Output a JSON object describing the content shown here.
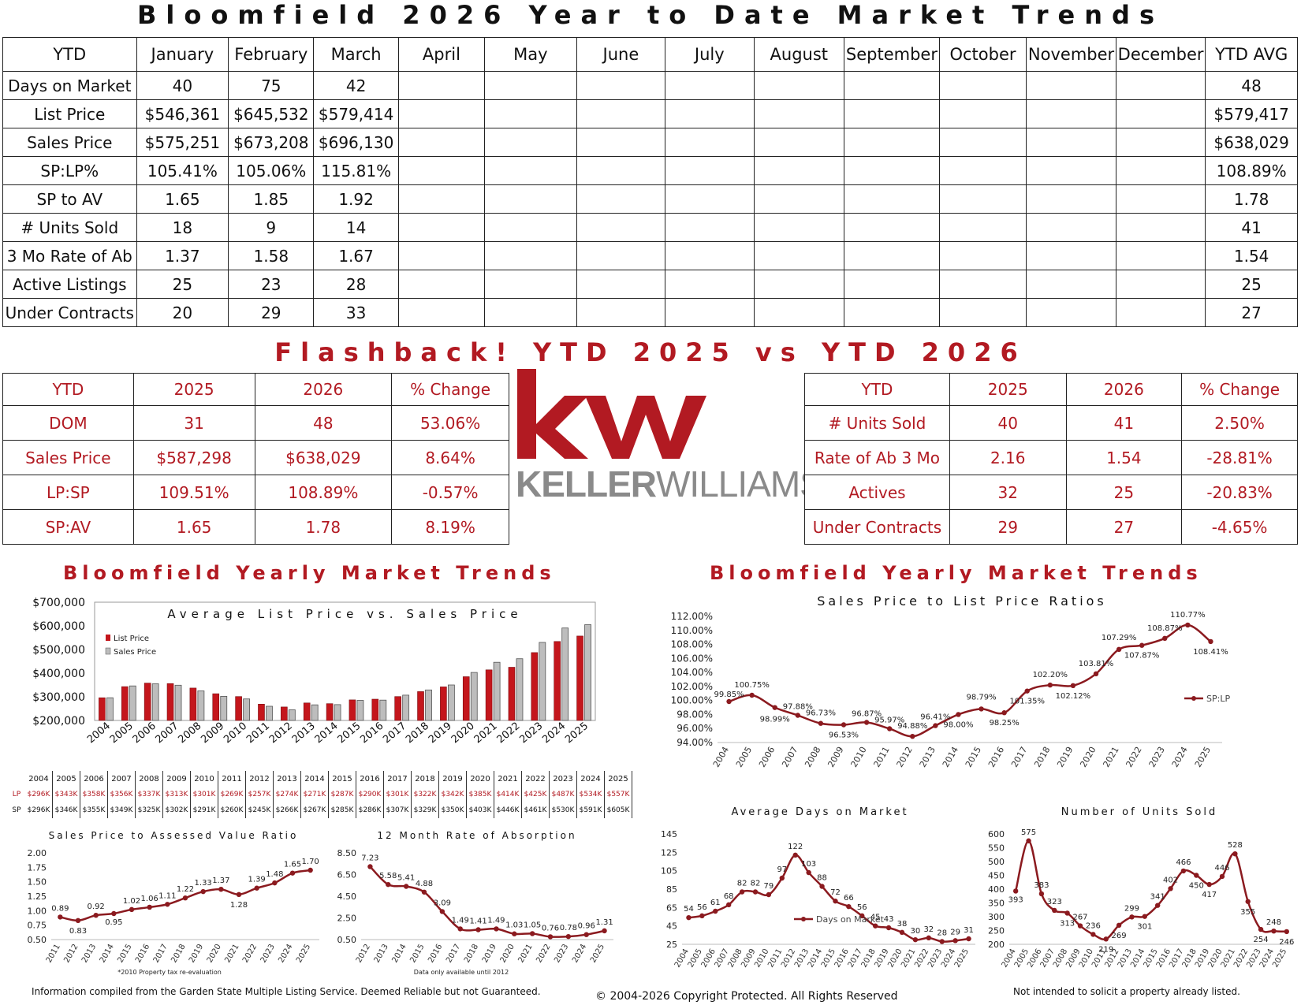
{
  "header": {
    "title": "Bloomfield 2026 Year to Date Market Trends"
  },
  "ytd_table": {
    "columns": [
      "YTD",
      "January",
      "February",
      "March",
      "April",
      "May",
      "June",
      "July",
      "August",
      "September",
      "October",
      "November",
      "December",
      "YTD AVG"
    ],
    "rows": [
      {
        "label": "Days on Market",
        "jan": "40",
        "feb": "75",
        "mar": "42",
        "avg": "48"
      },
      {
        "label": "List Price",
        "jan": "$546,361",
        "feb": "$645,532",
        "mar": "$579,414",
        "avg": "$579,417"
      },
      {
        "label": "Sales Price",
        "jan": "$575,251",
        "feb": "$673,208",
        "mar": "$696,130",
        "avg": "$638,029"
      },
      {
        "label": "SP:LP%",
        "jan": "105.41%",
        "feb": "105.06%",
        "mar": "115.81%",
        "avg": "108.89%"
      },
      {
        "label": "SP to AV",
        "jan": "1.65",
        "feb": "1.85",
        "mar": "1.92",
        "avg": "1.78"
      },
      {
        "label": "# Units Sold",
        "jan": "18",
        "feb": "9",
        "mar": "14",
        "avg": "41"
      },
      {
        "label": "3 Mo Rate of Ab",
        "jan": "1.37",
        "feb": "1.58",
        "mar": "1.67",
        "avg": "1.54"
      },
      {
        "label": "Active Listings",
        "jan": "25",
        "feb": "23",
        "mar": "28",
        "avg": "25"
      },
      {
        "label": "Under Contracts",
        "jan": "20",
        "feb": "29",
        "mar": "33",
        "avg": "27"
      }
    ]
  },
  "flashback": {
    "title": "Flashback!  YTD 2025 vs YTD 2026",
    "left": {
      "headers": [
        "YTD",
        "2025",
        "2026",
        "% Change"
      ],
      "rows": [
        [
          "DOM",
          "31",
          "48",
          "53.06%"
        ],
        [
          "Sales Price",
          "$587,298",
          "$638,029",
          "8.64%"
        ],
        [
          "LP:SP",
          "109.51%",
          "108.89%",
          "-0.57%"
        ],
        [
          "SP:AV",
          "1.65",
          "1.78",
          "8.19%"
        ]
      ]
    },
    "right": {
      "headers": [
        "YTD",
        "2025",
        "2026",
        "% Change"
      ],
      "rows": [
        [
          "# Units Sold",
          "40",
          "41",
          "2.50%"
        ],
        [
          "Rate of Ab 3 Mo",
          "2.16",
          "1.54",
          "-28.81%"
        ],
        [
          "Actives",
          "32",
          "25",
          "-20.83%"
        ],
        [
          "Under Contracts",
          "29",
          "27",
          "-4.65%"
        ]
      ]
    }
  },
  "logo": {
    "letters": "kw",
    "wordmark_bold": "KELLER",
    "wordmark_light": "WILLIAMS",
    "registered": "®",
    "color": "#b21a22"
  },
  "sections": {
    "left_title": "Bloomfield Yearly Market Trends",
    "right_title": "Bloomfield Yearly Market Trends"
  },
  "colors": {
    "brand_red": "#b21a22",
    "line_red": "#8b1a1f",
    "gray_bar": "#bdbdbd"
  },
  "years_full": [
    "2004",
    "2005",
    "2006",
    "2007",
    "2008",
    "2009",
    "2010",
    "2011",
    "2012",
    "2013",
    "2014",
    "2015",
    "2016",
    "2017",
    "2018",
    "2019",
    "2020",
    "2021",
    "2022",
    "2023",
    "2024",
    "2025"
  ],
  "years_short": [
    "2011",
    "2012",
    "2013",
    "2014",
    "2015",
    "2016",
    "2017",
    "2018",
    "2019",
    "2020",
    "2021",
    "2022",
    "2023",
    "2024",
    "2025"
  ],
  "price_table": {
    "lp_label": "LP",
    "sp_label": "SP",
    "lp": [
      "$296K",
      "$343K",
      "$358K",
      "$356K",
      "$337K",
      "$313K",
      "$301K",
      "$269K",
      "$257K",
      "$274K",
      "$271K",
      "$287K",
      "$290K",
      "$301K",
      "$322K",
      "$342K",
      "$385K",
      "$414K",
      "$425K",
      "$487K",
      "$534K",
      "$557K"
    ],
    "sp": [
      "$296K",
      "$346K",
      "$355K",
      "$349K",
      "$325K",
      "$302K",
      "$291K",
      "$260K",
      "$245K",
      "$266K",
      "$267K",
      "$285K",
      "$286K",
      "$307K",
      "$329K",
      "$350K",
      "$403K",
      "$446K",
      "$461K",
      "$530K",
      "$591K",
      "$605K"
    ]
  },
  "chart_data": [
    {
      "type": "bar",
      "title": "Average List Price vs. Sales Price",
      "categories": [
        "2004",
        "2005",
        "2006",
        "2007",
        "2008",
        "2009",
        "2010",
        "2011",
        "2012",
        "2013",
        "2014",
        "2015",
        "2016",
        "2017",
        "2018",
        "2019",
        "2020",
        "2021",
        "2022",
        "2023",
        "2024",
        "2025"
      ],
      "series": [
        {
          "name": "List Price",
          "values": [
            296,
            343,
            358,
            356,
            337,
            313,
            301,
            269,
            257,
            274,
            271,
            287,
            290,
            301,
            322,
            342,
            385,
            414,
            425,
            487,
            534,
            557
          ]
        },
        {
          "name": "Sales Price",
          "values": [
            296,
            346,
            355,
            349,
            325,
            302,
            291,
            260,
            245,
            266,
            267,
            285,
            286,
            307,
            329,
            350,
            403,
            446,
            461,
            530,
            591,
            605
          ]
        }
      ],
      "y_ticks": [
        "$200,000",
        "$300,000",
        "$400,000",
        "$500,000",
        "$600,000",
        "$700,000"
      ],
      "ylim": [
        200,
        700
      ],
      "legend": "top-left"
    },
    {
      "type": "line",
      "title": "Sales Price to List Price Ratios",
      "categories": [
        "2004",
        "2005",
        "2006",
        "2007",
        "2008",
        "2009",
        "2010",
        "2011",
        "2012",
        "2013",
        "2014",
        "2015",
        "2016",
        "2017",
        "2018",
        "2019",
        "2020",
        "2021",
        "2022",
        "2023",
        "2024",
        "2025"
      ],
      "series": [
        {
          "name": "SP:LP",
          "values": [
            99.85,
            100.75,
            98.99,
            97.88,
            96.73,
            96.53,
            96.87,
            95.97,
            94.88,
            96.41,
            98.0,
            98.79,
            98.25,
            101.35,
            102.2,
            102.12,
            103.81,
            107.29,
            107.87,
            108.87,
            110.77,
            108.41
          ]
        }
      ],
      "labels": [
        "99.85%",
        "100.75%",
        "98.99%",
        "97.88%",
        "96.73%",
        "96.53%",
        "96.87%",
        "95.97%",
        "94.88%",
        "96.41%",
        "98.00%",
        "98.79%",
        "98.25%",
        "101.35%",
        "102.20%",
        "102.12%",
        "103.81%",
        "107.29%",
        "107.87%",
        "108.87%",
        "110.77%",
        "108.41%"
      ],
      "y_ticks": [
        "94.00%",
        "96.00%",
        "98.00%",
        "100.00%",
        "102.00%",
        "104.00%",
        "106.00%",
        "108.00%",
        "110.00%",
        "112.00%"
      ],
      "ylim": [
        94,
        112
      ],
      "legend": "right"
    },
    {
      "type": "line",
      "title": "Sales Price to Assessed Value Ratio",
      "categories": [
        "2011",
        "2012",
        "2013",
        "2014",
        "2015",
        "2016",
        "2017",
        "2018",
        "2019",
        "2020",
        "2021",
        "2022",
        "2023",
        "2024",
        "2025"
      ],
      "series": [
        {
          "name": "",
          "values": [
            0.89,
            0.83,
            0.92,
            0.95,
            1.02,
            1.06,
            1.11,
            1.22,
            1.33,
            1.37,
            1.28,
            1.39,
            1.48,
            1.65,
            1.7
          ]
        }
      ],
      "labels": [
        "0.89",
        "0.83",
        "0.92",
        "0.95",
        "1.02",
        "1.06",
        "1.11",
        "1.22",
        "1.33",
        "1.37",
        "1.28",
        "1.39",
        "1.48",
        "1.65",
        "1.70"
      ],
      "y_ticks": [
        "0.50",
        "0.75",
        "1.00",
        "1.25",
        "1.50",
        "1.75",
        "2.00"
      ],
      "ylim": [
        0.5,
        2.0
      ],
      "footnote": "*2010 Property tax re-evaluation"
    },
    {
      "type": "line",
      "title": "12 Month Rate of Absorption",
      "categories": [
        "2012",
        "2013",
        "2014",
        "2015",
        "2016",
        "2017",
        "2018",
        "2019",
        "2020",
        "2021",
        "2022",
        "2023",
        "2024",
        "2025"
      ],
      "series": [
        {
          "name": "",
          "values": [
            7.23,
            5.58,
            5.41,
            4.88,
            3.09,
            1.49,
            1.41,
            1.49,
            1.03,
            1.05,
            0.76,
            0.78,
            0.96,
            1.31
          ]
        }
      ],
      "labels": [
        "7.23",
        "5.58",
        "5.41",
        "4.88",
        "3.09",
        "1.49",
        "1.41",
        "1.49",
        "1.03",
        "1.05",
        "0.76",
        "0.78",
        "0.96",
        "1.31"
      ],
      "y_ticks": [
        "0.50",
        "2.50",
        "4.50",
        "6.50",
        "8.50"
      ],
      "ylim": [
        0.5,
        8.5
      ],
      "footnote": "Data only available until 2012"
    },
    {
      "type": "line",
      "title": "Average Days on Market",
      "categories": [
        "2004",
        "2005",
        "2006",
        "2007",
        "2008",
        "2009",
        "2010",
        "2011",
        "2012",
        "2013",
        "2014",
        "2015",
        "2016",
        "2017",
        "2018",
        "2019",
        "2020",
        "2021",
        "2022",
        "2023",
        "2024",
        "2025"
      ],
      "series": [
        {
          "name": "Days on Market",
          "values": [
            54,
            56,
            61,
            68,
            82,
            82,
            79,
            97,
            122,
            103,
            88,
            72,
            66,
            56,
            45,
            43,
            38,
            30,
            32,
            28,
            29,
            31
          ]
        }
      ],
      "labels": [
        "54",
        "56",
        "61",
        "68",
        "82",
        "82",
        "79",
        "97",
        "122",
        "103",
        "88",
        "72",
        "66",
        "56",
        "45",
        "43",
        "38",
        "30",
        "32",
        "28",
        "29",
        "31"
      ],
      "y_ticks": [
        "25",
        "45",
        "65",
        "85",
        "105",
        "125",
        "145"
      ],
      "ylim": [
        25,
        145
      ],
      "legend": "bottom-right"
    },
    {
      "type": "line",
      "title": "Number of Units Sold",
      "categories": [
        "2004",
        "2005",
        "2006",
        "2007",
        "2008",
        "2009",
        "2010",
        "2011",
        "2012",
        "2013",
        "2014",
        "2015",
        "2016",
        "2017",
        "2018",
        "2019",
        "2020",
        "2021",
        "2022",
        "2023",
        "2024",
        "2025"
      ],
      "series": [
        {
          "name": "",
          "values": [
            393,
            575,
            383,
            323,
            313,
            267,
            236,
            219,
            269,
            299,
            301,
            341,
            402,
            466,
            450,
            417,
            446,
            528,
            355,
            254,
            248,
            246
          ]
        }
      ],
      "labels": [
        "393",
        "575",
        "383",
        "323",
        "313",
        "267",
        "236",
        "219",
        "269",
        "299",
        "301",
        "341",
        "402",
        "466",
        "450",
        "417",
        "446",
        "528",
        "355",
        "254",
        "248",
        "246"
      ],
      "y_ticks": [
        "200",
        "250",
        "300",
        "350",
        "400",
        "450",
        "500",
        "550",
        "600"
      ],
      "ylim": [
        200,
        600
      ]
    }
  ],
  "footers": {
    "left": "Information compiled from the Garden State Multiple Listing Service.  Deemed Reliable but not Guaranteed.",
    "center": "© 2004-2026 Copyright Protected.  All Rights Reserved",
    "right": "Not intended to solicit a property already listed."
  }
}
